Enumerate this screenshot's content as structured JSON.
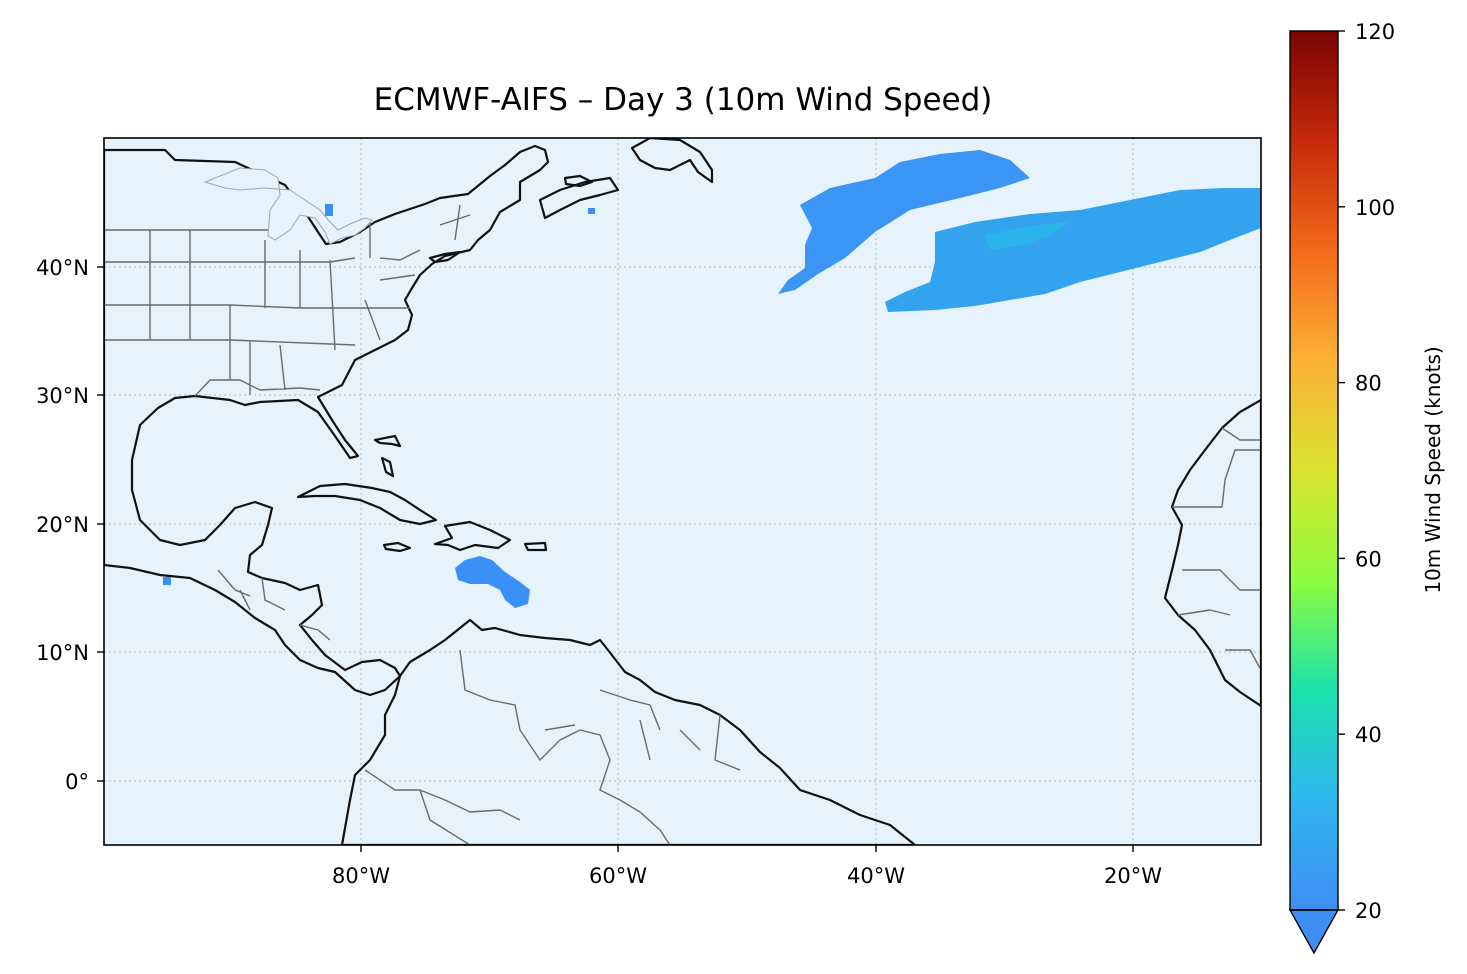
{
  "title": "ECMWF-AIFS – Day 3 (10m Wind Speed)",
  "map": {
    "extent": {
      "lon": [
        -100,
        -10
      ],
      "lat": [
        -5,
        50
      ]
    },
    "ocean_color": "#e6f2fc",
    "land_color": "#e3e3e3",
    "x_ticks": [
      {
        "lon": -80,
        "label": "80°W"
      },
      {
        "lon": -60,
        "label": "60°W"
      },
      {
        "lon": -40,
        "label": "40°W"
      },
      {
        "lon": -20,
        "label": "20°W"
      }
    ],
    "y_ticks": [
      {
        "lat": 40,
        "label": "40°N"
      },
      {
        "lat": 30,
        "label": "30°N"
      },
      {
        "lat": 20,
        "label": "20°N"
      },
      {
        "lat": 10,
        "label": "10°N"
      },
      {
        "lat": 0,
        "label": "0°"
      }
    ],
    "wind_regions": [
      {
        "name": "north-atlantic-jet-west",
        "speed_knots": 22,
        "color": "#3a95f5"
      },
      {
        "name": "north-atlantic-jet-east",
        "speed_knots": 25,
        "color": "#30aaea"
      },
      {
        "name": "caribbean",
        "speed_knots": 21,
        "color": "#3a90f6"
      }
    ]
  },
  "colorbar": {
    "label": "10m Wind Speed (knots)",
    "min": 20,
    "max": 120,
    "extend": "min",
    "cmap": "turbo",
    "ticks": [
      {
        "value": 20,
        "label": "20"
      },
      {
        "value": 40,
        "label": "40"
      },
      {
        "value": 60,
        "label": "60"
      },
      {
        "value": 80,
        "label": "80"
      },
      {
        "value": 100,
        "label": "100"
      },
      {
        "value": 120,
        "label": "120"
      }
    ],
    "stops": [
      "#3f8ef4",
      "#2fb6ee",
      "#1be2ac",
      "#8efc3f",
      "#d9e32e",
      "#fcb136",
      "#f36a1a",
      "#c5290a",
      "#7a0403"
    ]
  }
}
